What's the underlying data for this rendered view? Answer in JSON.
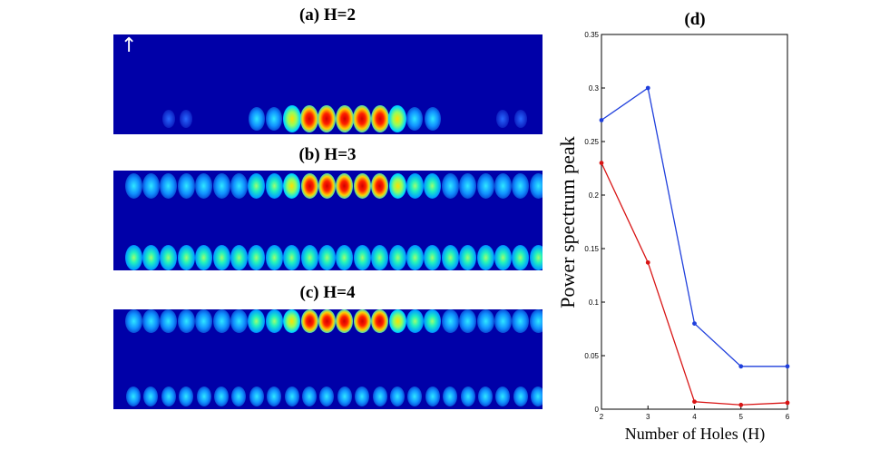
{
  "panels": [
    {
      "title": "(a) H=2",
      "rows": 1
    },
    {
      "title": "(b) H=3",
      "rows": 2
    },
    {
      "title": "(c) H=4",
      "rows": 2
    }
  ],
  "arrow_symbol": "↑",
  "chart_data": {
    "type": "line",
    "title": "(d)",
    "xlabel": "Number of Holes (H)",
    "ylabel": "Power spectrum peak",
    "x": [
      2,
      3,
      4,
      5,
      6
    ],
    "xlim": [
      2,
      6
    ],
    "ylim": [
      0,
      0.35
    ],
    "xticks": [
      "2",
      "3",
      "4",
      "5",
      "6"
    ],
    "yticks": [
      "0",
      "0.05",
      "0.1",
      "0.15",
      "0.2",
      "0.25",
      "0.3",
      "0.35"
    ],
    "grid": false,
    "series": [
      {
        "name": "blue",
        "color": "#1f3fdc",
        "values": [
          0.27,
          0.3,
          0.08,
          0.04,
          0.04
        ]
      },
      {
        "name": "red",
        "color": "#d81414",
        "values": [
          0.23,
          0.137,
          0.007,
          0.004,
          0.006
        ]
      }
    ]
  }
}
